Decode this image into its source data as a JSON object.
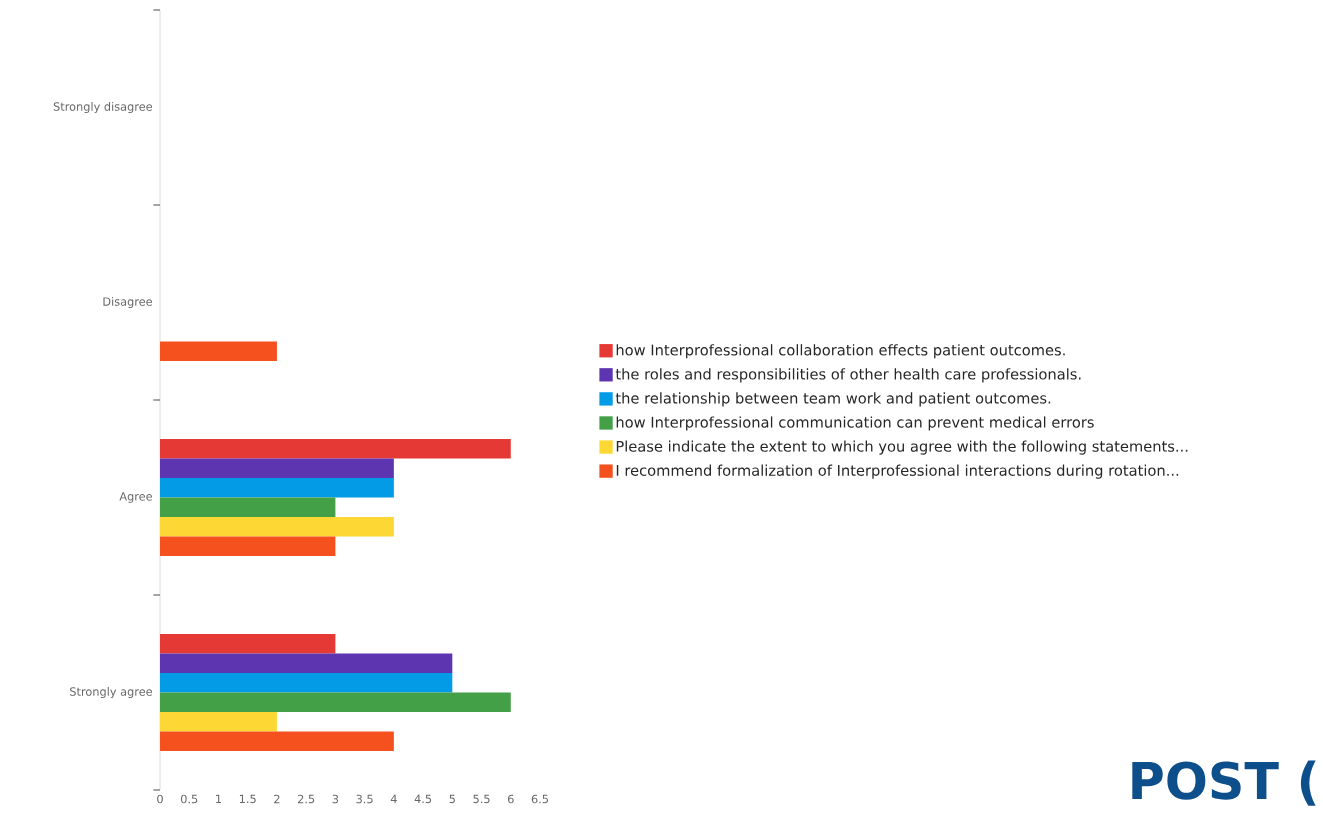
{
  "chart_data": {
    "type": "bar",
    "orientation": "horizontal",
    "categories": [
      "Strongly disagree",
      "Disagree",
      "Agree",
      "Strongly agree"
    ],
    "series": [
      {
        "name": "how Interprofessional collaboration effects patient outcomes.",
        "color": "#e53935",
        "values": [
          0,
          0,
          6,
          3
        ]
      },
      {
        "name": "the roles and responsibilities of other health care professionals.",
        "color": "#5e35b1",
        "values": [
          0,
          0,
          4,
          5
        ]
      },
      {
        "name": "the relationship between team work and patient outcomes.",
        "color": "#039be5",
        "values": [
          0,
          0,
          4,
          5
        ]
      },
      {
        "name": "how Interprofessional communication can prevent medical errors",
        "color": "#43a047",
        "values": [
          0,
          0,
          3,
          6
        ]
      },
      {
        "name": "Please indicate the extent to which you agree with the following statements...",
        "color": "#fdd835",
        "values": [
          0,
          0,
          4,
          2
        ]
      },
      {
        "name": "I recommend formalization of Interprofessional interactions during rotation...",
        "color": "#f4511e",
        "values": [
          0,
          2,
          3,
          4
        ]
      }
    ],
    "xlim": [
      0,
      6.5
    ],
    "xticks": [
      0,
      0.5,
      1,
      1.5,
      2,
      2.5,
      3,
      3.5,
      4,
      4.5,
      5,
      5.5,
      6,
      6.5
    ],
    "legend": "right",
    "annotations": [
      "POST ("
    ]
  }
}
